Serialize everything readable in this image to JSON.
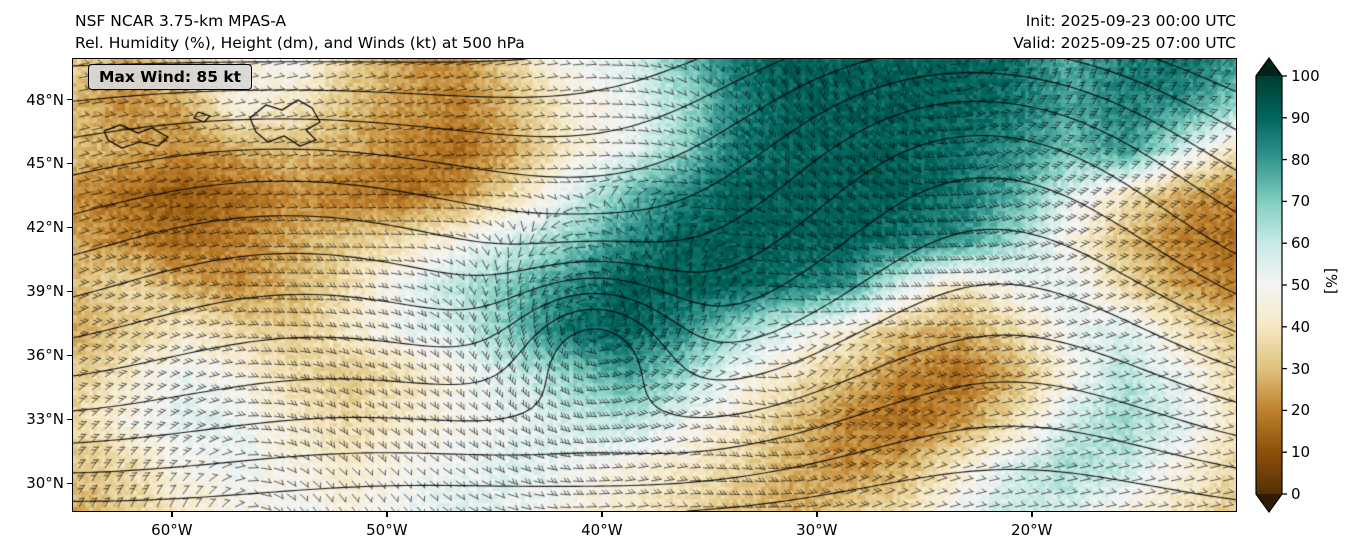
{
  "header": {
    "title_line1": "NSF NCAR 3.75-km MPAS-A",
    "title_line2": "Rel. Humidity (%), Height (dm), and Winds (kt) at 500 hPa",
    "init_label": "Init: 2025-09-23 00:00 UTC",
    "valid_label": "Valid: 2025-09-25 07:00 UTC"
  },
  "map": {
    "max_wind_label": "Max Wind: 85 kt"
  },
  "colorbar": {
    "unit_label": "[%]",
    "min": 0,
    "max": 100,
    "ticks": [
      {
        "value": 0,
        "label": "0"
      },
      {
        "value": 10,
        "label": "10"
      },
      {
        "value": 20,
        "label": "20"
      },
      {
        "value": 30,
        "label": "30"
      },
      {
        "value": 40,
        "label": "40"
      },
      {
        "value": 50,
        "label": "50"
      },
      {
        "value": 60,
        "label": "60"
      },
      {
        "value": 70,
        "label": "70"
      },
      {
        "value": 80,
        "label": "80"
      },
      {
        "value": 90,
        "label": "90"
      },
      {
        "value": 100,
        "label": "100"
      }
    ],
    "stops": [
      {
        "v": 0,
        "c": "#543005"
      },
      {
        "v": 10,
        "c": "#8c510a"
      },
      {
        "v": 20,
        "c": "#bf812d"
      },
      {
        "v": 30,
        "c": "#dfc27d"
      },
      {
        "v": 40,
        "c": "#f6e8c3"
      },
      {
        "v": 50,
        "c": "#f5f5f5"
      },
      {
        "v": 60,
        "c": "#c7eae5"
      },
      {
        "v": 70,
        "c": "#80cdc1"
      },
      {
        "v": 80,
        "c": "#35978f"
      },
      {
        "v": 90,
        "c": "#01665e"
      },
      {
        "v": 100,
        "c": "#003c30"
      }
    ],
    "arrow_over_color": "#00231c",
    "arrow_under_color": "#2f1c02"
  },
  "chart_data": {
    "type": "heatmap",
    "title": "NSF NCAR 3.75-km MPAS-A",
    "subtitle": "Rel. Humidity (%), Height (dm), and Winds (kt) at 500 hPa",
    "init_time": "2025-09-23 00:00 UTC",
    "valid_time": "2025-09-25 07:00 UTC",
    "max_wind_kt": 85,
    "field": "Relative Humidity",
    "unit": "%",
    "overlays": [
      "geopotential height contours (dm)",
      "wind barbs (kt)"
    ],
    "colorbar_range": [
      0,
      100
    ],
    "geo": {
      "lon_min": -64.6,
      "lon_max": -10.5,
      "lat_min": 28.7,
      "lat_max": 49.9
    },
    "x_ticks": [
      {
        "lon": -60,
        "label": "60°W"
      },
      {
        "lon": -50,
        "label": "50°W"
      },
      {
        "lon": -40,
        "label": "40°W"
      },
      {
        "lon": -30,
        "label": "30°W"
      },
      {
        "lon": -20,
        "label": "20°W"
      }
    ],
    "y_ticks": [
      {
        "lat": 48,
        "label": "48°N"
      },
      {
        "lat": 45,
        "label": "45°N"
      },
      {
        "lat": 42,
        "label": "42°N"
      },
      {
        "lat": 39,
        "label": "39°N"
      },
      {
        "lat": 36,
        "label": "36°N"
      },
      {
        "lat": 33,
        "label": "33°N"
      },
      {
        "lat": 30,
        "label": "30°N"
      }
    ],
    "rh_grid": {
      "comment": "Coarse visual estimate of the relative humidity field (%), rows top(49.9N) to bottom(28.7N), cols west(-64.6) to east(-10.5)",
      "nrows": 11,
      "ncols": 22,
      "values": [
        [
          38,
          32,
          36,
          48,
          55,
          38,
          28,
          26,
          40,
          55,
          60,
          75,
          90,
          95,
          95,
          95,
          95,
          92,
          80,
          88,
          92,
          85
        ],
        [
          32,
          26,
          30,
          50,
          45,
          34,
          28,
          24,
          34,
          48,
          55,
          68,
          88,
          95,
          95,
          95,
          95,
          90,
          82,
          88,
          85,
          72
        ],
        [
          34,
          30,
          26,
          30,
          34,
          30,
          24,
          20,
          30,
          46,
          56,
          72,
          90,
          95,
          95,
          95,
          92,
          86,
          76,
          84,
          62,
          42
        ],
        [
          26,
          20,
          15,
          20,
          26,
          22,
          20,
          26,
          42,
          60,
          76,
          88,
          95,
          95,
          95,
          95,
          90,
          80,
          60,
          44,
          30,
          24
        ],
        [
          30,
          24,
          20,
          24,
          30,
          36,
          42,
          52,
          62,
          72,
          86,
          95,
          95,
          95,
          95,
          90,
          85,
          70,
          50,
          34,
          24,
          20
        ],
        [
          34,
          40,
          30,
          26,
          32,
          42,
          56,
          66,
          76,
          86,
          95,
          95,
          95,
          90,
          84,
          60,
          44,
          54,
          58,
          40,
          28,
          24
        ],
        [
          30,
          36,
          46,
          40,
          36,
          46,
          56,
          62,
          76,
          92,
          95,
          86,
          70,
          58,
          48,
          34,
          30,
          40,
          56,
          60,
          44,
          34
        ],
        [
          36,
          46,
          56,
          50,
          40,
          36,
          42,
          52,
          62,
          72,
          82,
          70,
          55,
          44,
          34,
          25,
          20,
          30,
          50,
          66,
          56,
          40
        ],
        [
          40,
          50,
          60,
          56,
          46,
          40,
          46,
          52,
          56,
          62,
          66,
          56,
          46,
          34,
          24,
          20,
          26,
          42,
          62,
          70,
          60,
          44
        ],
        [
          34,
          42,
          52,
          56,
          50,
          46,
          52,
          56,
          60,
          56,
          50,
          46,
          40,
          30,
          26,
          30,
          46,
          60,
          70,
          64,
          50,
          40
        ],
        [
          30,
          36,
          46,
          50,
          55,
          50,
          56,
          60,
          56,
          50,
          46,
          40,
          34,
          30,
          36,
          42,
          56,
          64,
          60,
          50,
          44,
          36
        ]
      ]
    }
  }
}
